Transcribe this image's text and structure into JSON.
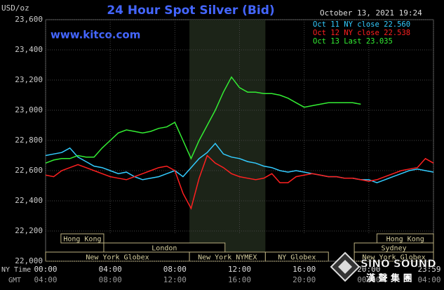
{
  "chart_data": {
    "type": "line",
    "title": "24 Hour Spot Silver (Bid)",
    "y_label": "USD/oz",
    "date": "October 13, 2021 19:24",
    "site": "www.kitco.com",
    "x_row_label": "NY Time",
    "x2_row_label": "GMT",
    "xlim": [
      0,
      24
    ],
    "ylim": [
      22000,
      23600
    ],
    "yticks": [
      {
        "value": 22000,
        "label": "22,000"
      },
      {
        "value": 22200,
        "label": "22,200"
      },
      {
        "value": 22400,
        "label": "22,400"
      },
      {
        "value": 22600,
        "label": "22,600"
      },
      {
        "value": 22800,
        "label": "22,800"
      },
      {
        "value": 23000,
        "label": "23,000"
      },
      {
        "value": 23200,
        "label": "23,200"
      },
      {
        "value": 23400,
        "label": "23,400"
      },
      {
        "value": 23600,
        "label": "23,600"
      }
    ],
    "xticks": [
      {
        "value": 0,
        "label": "00:00"
      },
      {
        "value": 4,
        "label": "04:00"
      },
      {
        "value": 8,
        "label": "08:00"
      },
      {
        "value": 12,
        "label": "12:00"
      },
      {
        "value": 16,
        "label": "16:00"
      },
      {
        "value": 20,
        "label": "20:00"
      },
      {
        "value": 24,
        "label": "23:59"
      }
    ],
    "x2ticks": [
      {
        "value": 0,
        "label": "04:00"
      },
      {
        "value": 4,
        "label": "08:00"
      },
      {
        "value": 8,
        "label": "12:00"
      },
      {
        "value": 12,
        "label": "16:00"
      },
      {
        "value": 16,
        "label": "20:00"
      },
      {
        "value": 20,
        "label": "00:00"
      },
      {
        "value": 24,
        "label": "04:00"
      }
    ],
    "grid": true,
    "x": [
      0,
      0.5,
      1,
      1.5,
      2,
      2.5,
      3,
      3.5,
      4,
      4.5,
      5,
      5.5,
      6,
      6.5,
      7,
      7.5,
      8,
      8.5,
      9,
      9.5,
      10,
      10.5,
      11,
      11.5,
      12,
      12.5,
      13,
      13.5,
      14,
      14.5,
      15,
      15.5,
      16,
      16.5,
      17,
      17.5,
      18,
      18.5,
      19,
      19.5,
      20,
      20.5,
      21,
      21.5,
      22,
      22.5,
      23,
      23.5,
      24
    ],
    "series": [
      {
        "name": "Oct 11 NY close 22.560",
        "color": "#33ccff",
        "values": [
          22700,
          22710,
          22720,
          22750,
          22690,
          22660,
          22630,
          22620,
          22600,
          22580,
          22590,
          22560,
          22540,
          22550,
          22560,
          22580,
          22600,
          22560,
          22620,
          22680,
          22720,
          22780,
          22710,
          22690,
          22680,
          22660,
          22650,
          22630,
          22620,
          22600,
          22590,
          22600,
          22590,
          22580,
          22570,
          22560,
          22560,
          22550,
          22550,
          22540,
          22540,
          22520,
          22540,
          22560,
          22580,
          22600,
          22610,
          22600,
          22590
        ]
      },
      {
        "name": "Oct 12 NY close 22.538",
        "color": "#ff2020",
        "values": [
          22570,
          22560,
          22600,
          22620,
          22640,
          22620,
          22600,
          22580,
          22560,
          22550,
          22540,
          22560,
          22580,
          22600,
          22620,
          22630,
          22600,
          22450,
          22350,
          22550,
          22700,
          22650,
          22620,
          22580,
          22560,
          22550,
          22540,
          22550,
          22580,
          22520,
          22520,
          22560,
          22570,
          22580,
          22570,
          22560,
          22560,
          22550,
          22550,
          22540,
          22530,
          22540,
          22560,
          22580,
          22600,
          22610,
          22620,
          22680,
          22650
        ]
      },
      {
        "name": "Oct 13 Last 23.035",
        "color": "#33ee33",
        "values": [
          22650,
          22670,
          22680,
          22680,
          22700,
          22690,
          22690,
          22750,
          22800,
          22850,
          22870,
          22860,
          22850,
          22860,
          22880,
          22890,
          22920,
          22800,
          22680,
          22800,
          22900,
          23000,
          23120,
          23220,
          23150,
          23120,
          23120,
          23110,
          23110,
          23100,
          23080,
          23050,
          23020,
          23030,
          23040,
          23050,
          23050,
          23050,
          23050,
          23040,
          null,
          null,
          null,
          null,
          null,
          null,
          null,
          null,
          null
        ]
      }
    ],
    "session_rows": [
      [
        {
          "name": "Hong Kong",
          "start": 0.95,
          "end": 3.6
        },
        {
          "name": "Hong Kong",
          "start": 20.5,
          "end": 24
        }
      ],
      [
        {
          "name": "London",
          "start": 3.6,
          "end": 11.1
        },
        {
          "name": "Sydney",
          "start": 19.1,
          "end": 24
        }
      ],
      [
        {
          "name": "New York Globex",
          "start": 0,
          "end": 8.9
        },
        {
          "name": "New York NYMEX",
          "start": 8.9,
          "end": 13.6,
          "shaded": true
        },
        {
          "name": "NY Globex",
          "start": 13.6,
          "end": 17.5
        },
        {
          "name": "New York Globex",
          "start": 19.1,
          "end": 24
        }
      ]
    ],
    "watermark": {
      "name": "SINO SOUND",
      "subtitle": "漢 聲 集 團"
    }
  }
}
